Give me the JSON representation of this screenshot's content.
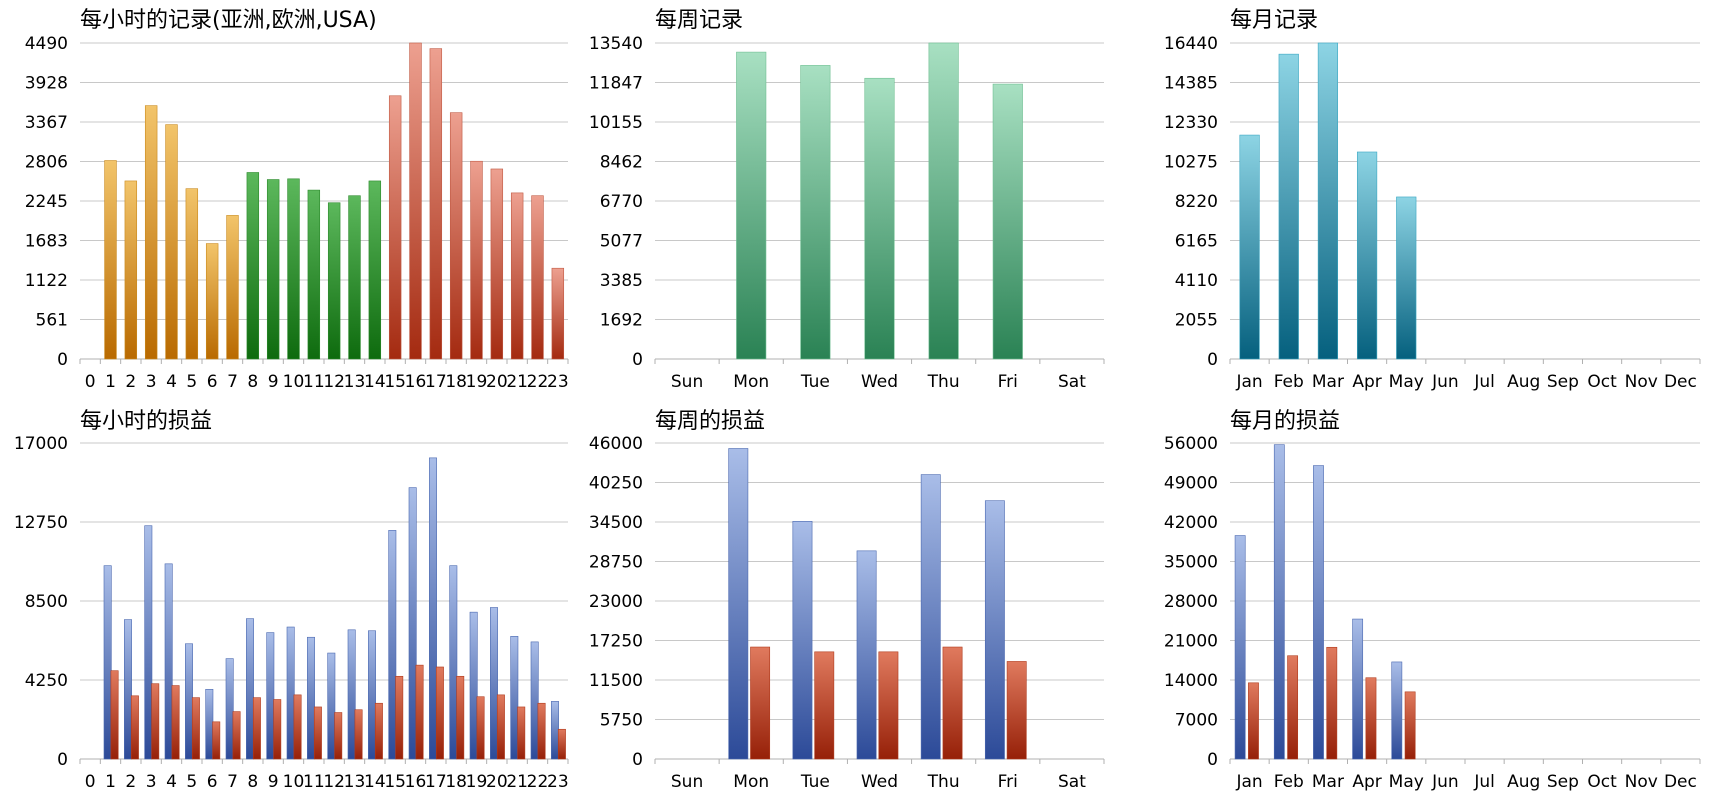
{
  "colors": {
    "hourly_asia": [
      "#f2c46a",
      "#b96a00"
    ],
    "hourly_europe": [
      "#5cb85c",
      "#0e6b0e"
    ],
    "hourly_usa": [
      "#eda090",
      "#a42a10"
    ],
    "weekly_records": [
      "#a8e0c2",
      "#2a8254"
    ],
    "monthly_records": [
      "#8dd4e4",
      "#05607e"
    ],
    "profit_blue": [
      "#a9bde8",
      "#2c4a98"
    ],
    "profit_red": [
      "#e07a5e",
      "#962008"
    ]
  },
  "chart_data": [
    {
      "id": "hourly-records",
      "type": "bar",
      "title": "每小时的记录(亚洲,欧洲,USA)",
      "categories": [
        "0",
        "1",
        "2",
        "3",
        "4",
        "5",
        "6",
        "7",
        "8",
        "9",
        "10",
        "11",
        "12",
        "13",
        "14",
        "15",
        "16",
        "17",
        "18",
        "19",
        "20",
        "21",
        "22",
        "23"
      ],
      "values": [
        0,
        2820,
        2530,
        3600,
        3330,
        2420,
        1640,
        2040,
        2650,
        2550,
        2560,
        2400,
        2220,
        2320,
        2530,
        3740,
        4490,
        4410,
        3500,
        2810,
        2700,
        2360,
        2320,
        1290
      ],
      "region_by_hour": [
        "asia",
        "asia",
        "asia",
        "asia",
        "asia",
        "asia",
        "asia",
        "asia",
        "europe",
        "europe",
        "europe",
        "europe",
        "europe",
        "europe",
        "europe",
        "usa",
        "usa",
        "usa",
        "usa",
        "usa",
        "usa",
        "usa",
        "usa",
        "usa"
      ],
      "yticks": [
        "0",
        "561",
        "1122",
        "1683",
        "2245",
        "2806",
        "3367",
        "3928",
        "4490"
      ],
      "ylim": [
        0,
        4490
      ]
    },
    {
      "id": "weekly-records",
      "type": "bar",
      "title": "每周记录",
      "categories": [
        "Sun",
        "Mon",
        "Tue",
        "Wed",
        "Thu",
        "Fri",
        "Sat"
      ],
      "values": [
        0,
        13150,
        12580,
        12030,
        13540,
        11780,
        0
      ],
      "yticks": [
        "0",
        "1692",
        "3385",
        "5077",
        "6770",
        "8462",
        "10155",
        "11847",
        "13540"
      ],
      "ylim": [
        0,
        13540
      ]
    },
    {
      "id": "monthly-records",
      "type": "bar",
      "title": "每月记录",
      "categories": [
        "Jan",
        "Feb",
        "Mar",
        "Apr",
        "May",
        "Jun",
        "Jul",
        "Aug",
        "Sep",
        "Oct",
        "Nov",
        "Dec"
      ],
      "values": [
        11650,
        15860,
        16440,
        10770,
        8430,
        0,
        0,
        0,
        0,
        0,
        0,
        0
      ],
      "yticks": [
        "0",
        "2055",
        "4110",
        "6165",
        "8220",
        "10275",
        "12330",
        "14385",
        "16440"
      ],
      "ylim": [
        0,
        16440
      ]
    },
    {
      "id": "hourly-profit",
      "type": "bar",
      "title": "每小时的损益",
      "categories": [
        "0",
        "1",
        "2",
        "3",
        "4",
        "5",
        "6",
        "7",
        "8",
        "9",
        "10",
        "11",
        "12",
        "13",
        "14",
        "15",
        "16",
        "17",
        "18",
        "19",
        "20",
        "21",
        "22",
        "23"
      ],
      "series": [
        {
          "values": [
            0,
            10400,
            7500,
            12550,
            10500,
            6200,
            3750,
            5400,
            7550,
            6800,
            7100,
            6550,
            5700,
            6950,
            6900,
            12300,
            14600,
            16200,
            10400,
            7900,
            8150,
            6600,
            6300,
            3100
          ]
        },
        {
          "values": [
            0,
            4750,
            3400,
            4050,
            3950,
            3300,
            2000,
            2550,
            3300,
            3200,
            3450,
            2800,
            2500,
            2650,
            3000,
            4450,
            5050,
            4950,
            4450,
            3350,
            3450,
            2800,
            3000,
            1600
          ]
        }
      ],
      "yticks": [
        "0",
        "4250",
        "8500",
        "12750",
        "17000"
      ],
      "ylim": [
        0,
        17000
      ]
    },
    {
      "id": "weekly-profit",
      "type": "bar",
      "title": "每周的损益",
      "categories": [
        "Sun",
        "Mon",
        "Tue",
        "Wed",
        "Thu",
        "Fri",
        "Sat"
      ],
      "series": [
        {
          "values": [
            0,
            45200,
            34600,
            30300,
            41400,
            37600,
            0
          ]
        },
        {
          "values": [
            0,
            16300,
            15600,
            15600,
            16300,
            14200,
            0
          ]
        }
      ],
      "yticks": [
        "0",
        "5750",
        "11500",
        "17250",
        "23000",
        "28750",
        "34500",
        "40250",
        "46000"
      ],
      "ylim": [
        0,
        46000
      ]
    },
    {
      "id": "monthly-profit",
      "type": "bar",
      "title": "每月的损益",
      "categories": [
        "Jan",
        "Feb",
        "Mar",
        "Apr",
        "May",
        "Jun",
        "Jul",
        "Aug",
        "Sep",
        "Oct",
        "Nov",
        "Dec"
      ],
      "series": [
        {
          "values": [
            39600,
            55700,
            52000,
            24800,
            17200,
            0,
            0,
            0,
            0,
            0,
            0,
            0
          ]
        },
        {
          "values": [
            13500,
            18300,
            19800,
            14400,
            11900,
            0,
            0,
            0,
            0,
            0,
            0,
            0
          ]
        }
      ],
      "yticks": [
        "0",
        "7000",
        "14000",
        "21000",
        "28000",
        "35000",
        "42000",
        "49000",
        "56000"
      ],
      "ylim": [
        0,
        56000
      ]
    }
  ]
}
